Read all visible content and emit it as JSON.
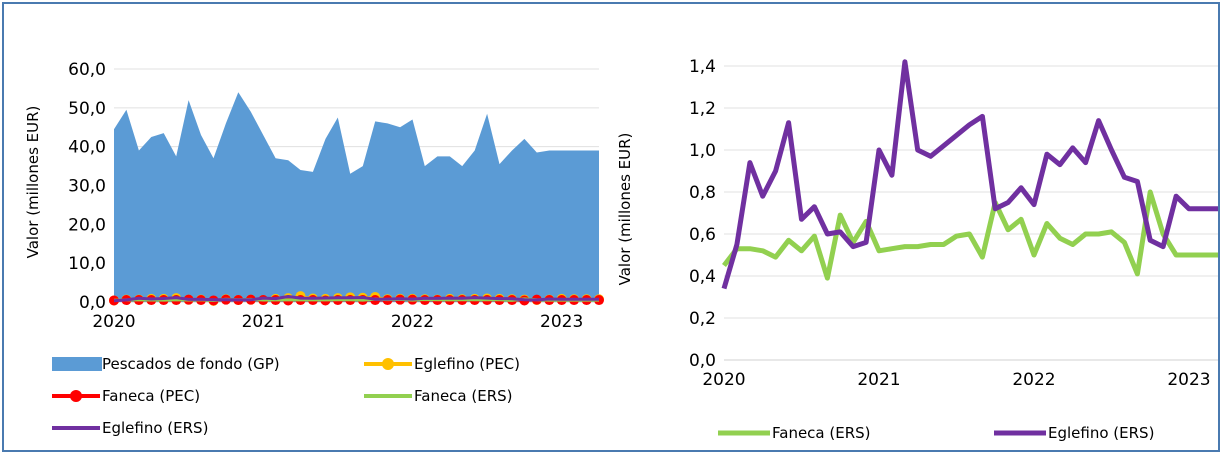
{
  "chart_data": [
    {
      "type": "area",
      "ylabel": "Valor (millones EUR)",
      "ylim": [
        0,
        60
      ],
      "y_ticks": [
        "0,0",
        "10,0",
        "20,0",
        "30,0",
        "40,0",
        "50,0",
        "60,0"
      ],
      "x_ticks": [
        "2020",
        "2021",
        "2022",
        "2023"
      ],
      "x": [
        2020.0,
        2020.083,
        2020.167,
        2020.25,
        2020.333,
        2020.417,
        2020.5,
        2020.583,
        2020.667,
        2020.75,
        2020.833,
        2020.917,
        2021.0,
        2021.083,
        2021.167,
        2021.25,
        2021.333,
        2021.417,
        2021.5,
        2021.583,
        2021.667,
        2021.75,
        2021.833,
        2021.917,
        2022.0,
        2022.083,
        2022.167,
        2022.25,
        2022.333,
        2022.417,
        2022.5,
        2022.583,
        2022.667,
        2022.75,
        2022.833,
        2022.917,
        2023.0,
        2023.083,
        2023.167,
        2023.25
      ],
      "series": [
        {
          "name": "Pescados de fondo (GP)",
          "color": "#5b9bd5",
          "kind": "area",
          "values": [
            44.5,
            49.5,
            39,
            42.5,
            43.5,
            37.5,
            52,
            43,
            37,
            46,
            54,
            49,
            43,
            37,
            36.5,
            34,
            33.5,
            42,
            47.5,
            33,
            35,
            46.5,
            46,
            45,
            47,
            35,
            37.5,
            37.5,
            35,
            39,
            48.5,
            35.5,
            39,
            42,
            38.5,
            39,
            39,
            39,
            39,
            39
          ]
        },
        {
          "name": "Eglefino (PEC)",
          "color": "#ffc000",
          "kind": "line-marker",
          "values": [
            0.4,
            0.6,
            0.6,
            0.8,
            0.8,
            1.0,
            0.6,
            0.6,
            0.3,
            0.7,
            0.5,
            0.6,
            0.5,
            0.8,
            1.0,
            1.5,
            0.9,
            0.8,
            1.0,
            1.2,
            1.1,
            1.3,
            0.7,
            0.8,
            0.8,
            0.7,
            0.6,
            0.8,
            0.7,
            0.8,
            0.9,
            0.8,
            0.7,
            0.6,
            0.5,
            0.6,
            0.8,
            0.7,
            0.7,
            0.7
          ]
        },
        {
          "name": "Faneca (PEC)",
          "color": "#ff0000",
          "kind": "line-marker",
          "values": [
            0.4,
            0.5,
            0.5,
            0.5,
            0.5,
            0.5,
            0.6,
            0.5,
            0.4,
            0.6,
            0.5,
            0.6,
            0.5,
            0.5,
            0.4,
            0.5,
            0.5,
            0.4,
            0.5,
            0.5,
            0.5,
            0.5,
            0.5,
            0.6,
            0.6,
            0.5,
            0.5,
            0.5,
            0.5,
            0.5,
            0.5,
            0.5,
            0.5,
            0.4,
            0.6,
            0.5,
            0.5,
            0.5,
            0.5,
            0.5
          ]
        },
        {
          "name": "Faneca (ERS)",
          "color": "#92d050",
          "kind": "line",
          "values": [
            0.45,
            0.53,
            0.53,
            0.52,
            0.49,
            0.57,
            0.52,
            0.59,
            0.39,
            0.69,
            0.56,
            0.66,
            0.52,
            0.53,
            0.54,
            0.54,
            0.55,
            0.55,
            0.59,
            0.6,
            0.49,
            0.75,
            0.62,
            0.67,
            0.5,
            0.65,
            0.58,
            0.55,
            0.6,
            0.6,
            0.61,
            0.56,
            0.41,
            0.8,
            0.6,
            0.5,
            0.5,
            0.5,
            0.5,
            0.5
          ]
        },
        {
          "name": "Eglefino (ERS)",
          "color": "#7030a0",
          "kind": "line",
          "values": [
            0.34,
            0.55,
            0.94,
            0.78,
            0.9,
            1.13,
            0.67,
            0.73,
            0.6,
            0.61,
            0.54,
            0.56,
            1.0,
            0.88,
            1.42,
            1.0,
            0.97,
            1.02,
            1.07,
            1.12,
            1.16,
            0.72,
            0.75,
            0.82,
            0.74,
            0.98,
            0.93,
            1.01,
            0.94,
            1.14,
            1.0,
            0.87,
            0.85,
            0.57,
            0.54,
            0.78,
            0.72,
            0.72,
            0.72,
            0.72
          ]
        }
      ],
      "legend": {
        "placement": "bottom",
        "items": [
          "Pescados de fondo (GP)",
          "Eglefino (PEC)",
          "Faneca (PEC)",
          "Faneca (ERS)",
          "Eglefino (ERS)"
        ]
      }
    },
    {
      "type": "line",
      "ylabel": "Valor (millones EUR)",
      "ylim": [
        0,
        1.4
      ],
      "y_ticks": [
        "0,0",
        "0,2",
        "0,4",
        "0,6",
        "0,8",
        "1,0",
        "1,2",
        "1,4"
      ],
      "x_ticks": [
        "2020",
        "2021",
        "2022",
        "2023"
      ],
      "x": [
        2020.0,
        2020.083,
        2020.167,
        2020.25,
        2020.333,
        2020.417,
        2020.5,
        2020.583,
        2020.667,
        2020.75,
        2020.833,
        2020.917,
        2021.0,
        2021.083,
        2021.167,
        2021.25,
        2021.333,
        2021.417,
        2021.5,
        2021.583,
        2021.667,
        2021.75,
        2021.833,
        2021.917,
        2022.0,
        2022.083,
        2022.167,
        2022.25,
        2022.333,
        2022.417,
        2022.5,
        2022.583,
        2022.667,
        2022.75,
        2022.833,
        2022.917,
        2023.0,
        2023.083,
        2023.167,
        2023.25
      ],
      "series": [
        {
          "name": "Faneca (ERS)",
          "color": "#92d050",
          "values": [
            0.45,
            0.53,
            0.53,
            0.52,
            0.49,
            0.57,
            0.52,
            0.59,
            0.39,
            0.69,
            0.56,
            0.66,
            0.52,
            0.53,
            0.54,
            0.54,
            0.55,
            0.55,
            0.59,
            0.6,
            0.49,
            0.75,
            0.62,
            0.67,
            0.5,
            0.65,
            0.58,
            0.55,
            0.6,
            0.6,
            0.61,
            0.56,
            0.41,
            0.8,
            0.6,
            0.5,
            0.5,
            0.5,
            0.5,
            0.5
          ]
        },
        {
          "name": "Eglefino (ERS)",
          "color": "#7030a0",
          "values": [
            0.34,
            0.55,
            0.94,
            0.78,
            0.9,
            1.13,
            0.67,
            0.73,
            0.6,
            0.61,
            0.54,
            0.56,
            1.0,
            0.88,
            1.42,
            1.0,
            0.97,
            1.02,
            1.07,
            1.12,
            1.16,
            0.72,
            0.75,
            0.82,
            0.74,
            0.98,
            0.93,
            1.01,
            0.94,
            1.14,
            1.0,
            0.87,
            0.85,
            0.57,
            0.54,
            0.78,
            0.72,
            0.72,
            0.72,
            0.72
          ]
        }
      ],
      "legend": {
        "placement": "bottom",
        "items": [
          "Faneca (ERS)",
          "Eglefino (ERS)"
        ]
      }
    }
  ]
}
